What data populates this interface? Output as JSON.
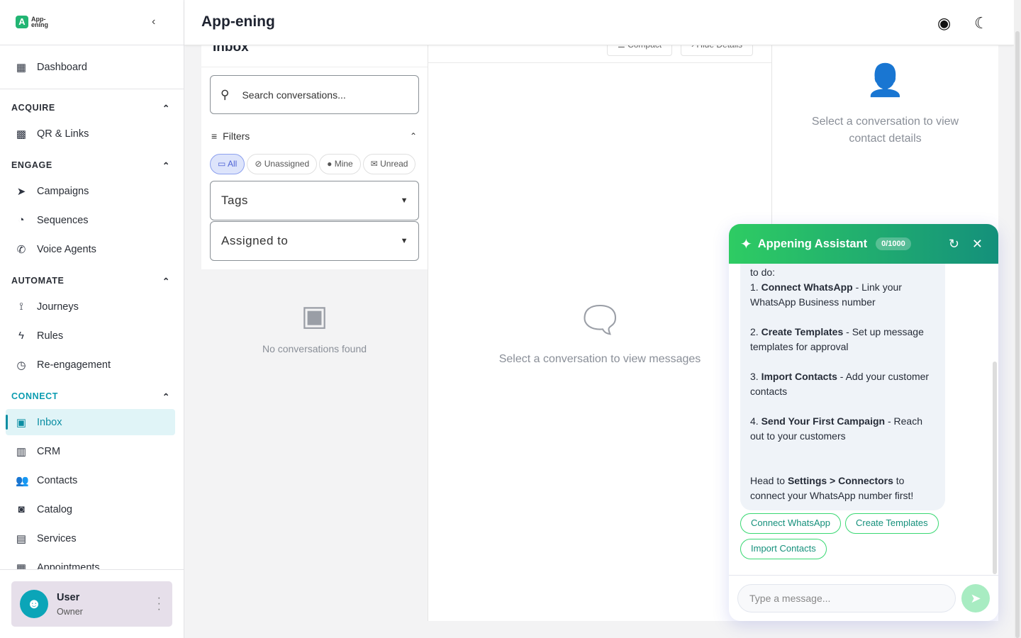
{
  "app": {
    "logo_text": "App-ening",
    "title": "App-ening"
  },
  "sidebar": {
    "dashboard": "Dashboard",
    "sections": [
      {
        "label": "ACQUIRE",
        "items": [
          "QR & Links"
        ]
      },
      {
        "label": "ENGAGE",
        "items": [
          "Campaigns",
          "Sequences",
          "Voice Agents"
        ]
      },
      {
        "label": "AUTOMATE",
        "items": [
          "Journeys",
          "Rules",
          "Re-engagement"
        ]
      },
      {
        "label": "CONNECT",
        "items": [
          "Inbox",
          "CRM",
          "Contacts",
          "Catalog",
          "Services",
          "Appointments"
        ]
      }
    ],
    "active": "Inbox",
    "user": {
      "name": "User",
      "role": "Owner"
    }
  },
  "inbox": {
    "title": "Inbox",
    "search_placeholder": "Search conversations...",
    "filters_label": "Filters",
    "chips": [
      "All",
      "Unassigned",
      "Mine",
      "Unread"
    ],
    "tags_label": "Tags",
    "assigned_label": "Assigned to",
    "empty": "No conversations found"
  },
  "messages": {
    "compact": "Compact",
    "hide_details": "Hide Details",
    "empty": "Select a conversation to view messages"
  },
  "details": {
    "empty": "Select a conversation to view contact details"
  },
  "assistant": {
    "title": "Appening Assistant",
    "counter": "0/1000",
    "intro": "to do:",
    "steps": [
      {
        "num": "1.",
        "bold": "Connect WhatsApp",
        "rest": " - Link your WhatsApp Business number"
      },
      {
        "num": "2.",
        "bold": "Create Templates",
        "rest": " - Set up message templates for approval"
      },
      {
        "num": "3.",
        "bold": "Import Contacts",
        "rest": " - Add your customer contacts"
      },
      {
        "num": "4.",
        "bold": "Send Your First Campaign",
        "rest": " - Reach out to your customers"
      }
    ],
    "outro": {
      "pre": "Head to ",
      "bold": "Settings > Connectors",
      "post": " to connect your WhatsApp number first!"
    },
    "quick_replies": [
      "Connect WhatsApp",
      "Create Templates",
      "Import Contacts"
    ],
    "input_placeholder": "Type a message...",
    "colors": {
      "gradient_start": "#2ecc63",
      "gradient_end": "#14907b"
    }
  }
}
